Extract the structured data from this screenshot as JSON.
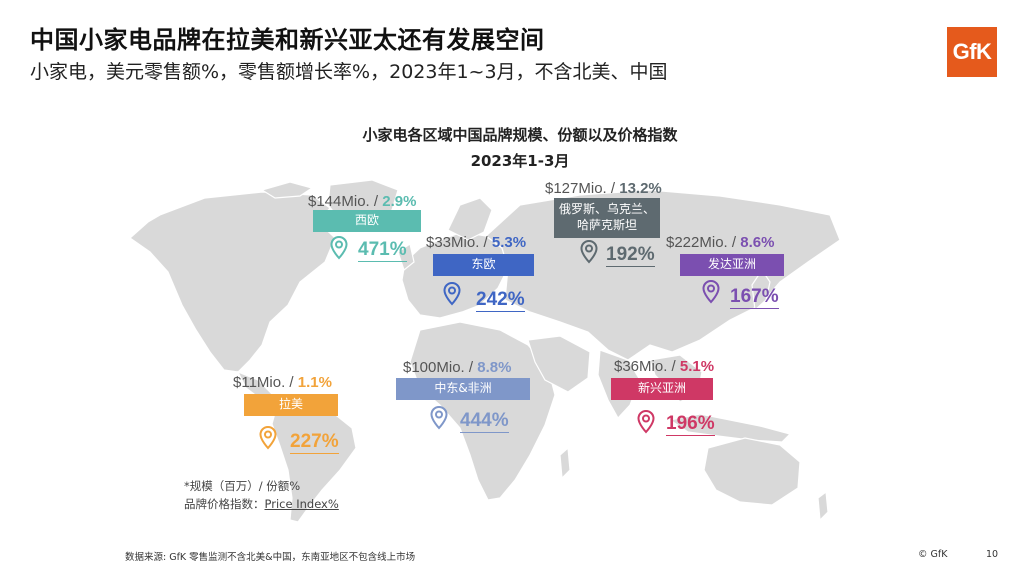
{
  "header": {
    "title": "中国小家电品牌在拉美和新兴亚太还有发展空间",
    "subtitle": "小家电，美元零售额%，零售额增长率%，2023年1~3月，不含北美、中国"
  },
  "logo": {
    "text": "GfK",
    "color": "#e55a1c"
  },
  "map": {
    "title": "小家电各区域中国品牌规模、份额以及价格指数",
    "period": "2023年1-3月",
    "land_color": "#d9d9d9"
  },
  "regions": [
    {
      "id": "western-europe",
      "name": "西欧",
      "size": "$144Mio.",
      "share": "2.9%",
      "price_index": "471%",
      "color": "#5bbcb0"
    },
    {
      "id": "russia-ukraine-kz",
      "name_line1": "俄罗斯、乌克兰、",
      "name_line2": "哈萨克斯坦",
      "size": "$127Mio.",
      "share": "13.2%",
      "price_index": "192%",
      "color": "#5e6a70"
    },
    {
      "id": "eastern-europe",
      "name": "东欧",
      "size": "$33Mio.",
      "share": "5.3%",
      "price_index": "242%",
      "color": "#3f66c4"
    },
    {
      "id": "developed-asia",
      "name": "发达亚洲",
      "size": "$222Mio.",
      "share": "8.6%",
      "price_index": "167%",
      "color": "#7b4fb0"
    },
    {
      "id": "middle-east-africa",
      "name": "中东&非洲",
      "size": "$100Mio.",
      "share": "8.8%",
      "price_index": "444%",
      "color": "#7f97c9"
    },
    {
      "id": "emerging-asia",
      "name": "新兴亚洲",
      "size": "$36Mio.",
      "share": "5.1%",
      "price_index": "196%",
      "color": "#cf3865"
    },
    {
      "id": "latin-america",
      "name": "拉美",
      "size": "$11Mio.",
      "share": "1.1%",
      "price_index": "227%",
      "color": "#f2a33a"
    }
  ],
  "notes": {
    "line1": "*规模（百万）/ 份额%",
    "line2_prefix": "品牌价格指数：",
    "line2_link": "Price Index%"
  },
  "footer": {
    "source": "数据来源: GfK 零售监测不含北美&中国，东南亚地区不包含线上市场",
    "copyright": "© GfK",
    "page": "10"
  }
}
